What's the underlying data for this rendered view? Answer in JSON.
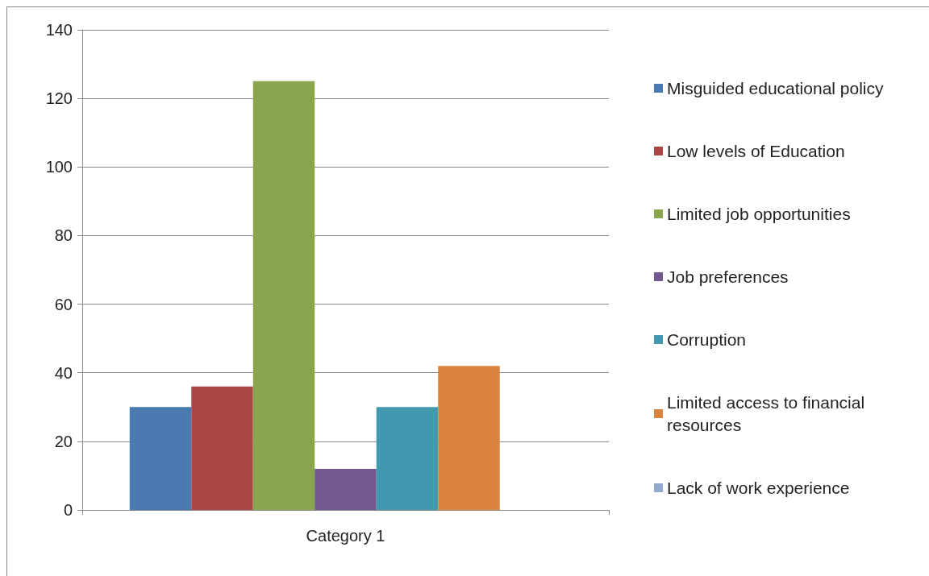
{
  "chart_data": {
    "type": "bar",
    "categories": [
      "Category 1"
    ],
    "series": [
      {
        "name": "Misguided educational policy",
        "color": "#4a7ab0",
        "values": [
          30
        ]
      },
      {
        "name": "Low levels of Education",
        "color": "#aa4643",
        "values": [
          36
        ]
      },
      {
        "name": "Limited job opportunities",
        "color": "#89a54e",
        "values": [
          125
        ]
      },
      {
        "name": "Job preferences",
        "color": "#71588f",
        "values": [
          12
        ]
      },
      {
        "name": "Corruption",
        "color": "#4198af",
        "values": [
          30
        ]
      },
      {
        "name": "Limited access to financial resources",
        "color": "#db843d",
        "values": [
          42
        ]
      },
      {
        "name": "Lack of work experience",
        "color": "#93a9cf",
        "values": [
          0
        ]
      }
    ],
    "ylim": [
      0,
      140
    ],
    "yticks": [
      0,
      20,
      40,
      60,
      80,
      100,
      120,
      140
    ],
    "grid": true,
    "legend": "right"
  }
}
